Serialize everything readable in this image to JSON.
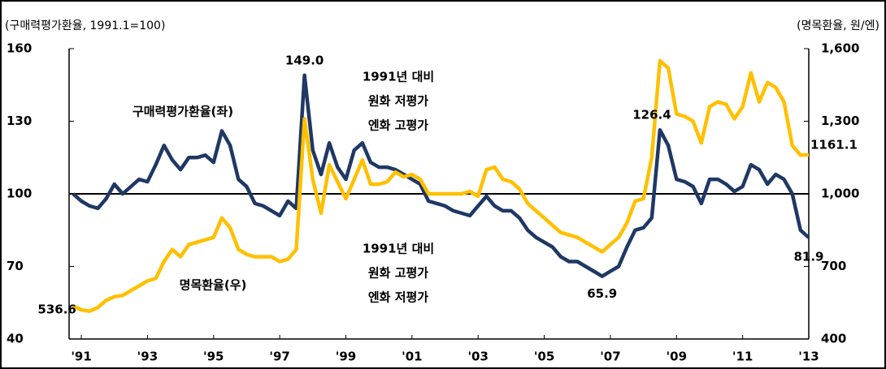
{
  "chart_data": {
    "type": "line",
    "left_axis_label": "(구매력평가환율, 1991.1=100)",
    "right_axis_label": "(명목환율, 원/엔)",
    "annotations": [
      [
        "1991년 대비",
        "원화 저평가",
        "엔화 고평가"
      ],
      [
        "1991년 대비",
        "원화 고평가",
        "엔화 저평가"
      ]
    ],
    "x": [
      1990.75,
      1991,
      1991.25,
      1991.5,
      1991.75,
      1992,
      1992.25,
      1992.5,
      1992.75,
      1993,
      1993.25,
      1993.5,
      1993.75,
      1994,
      1994.25,
      1994.5,
      1994.75,
      1995,
      1995.25,
      1995.5,
      1995.75,
      1996,
      1996.25,
      1996.5,
      1996.75,
      1997,
      1997.25,
      1997.5,
      1997.75,
      1998,
      1998.25,
      1998.5,
      1998.75,
      1999,
      1999.25,
      1999.5,
      1999.75,
      2000,
      2000.25,
      2000.5,
      2000.75,
      2001,
      2001.25,
      2001.5,
      2001.75,
      2002,
      2002.25,
      2002.5,
      2002.75,
      2003,
      2003.25,
      2003.5,
      2003.75,
      2004,
      2004.25,
      2004.5,
      2004.75,
      2005,
      2005.25,
      2005.5,
      2005.75,
      2006,
      2006.25,
      2006.5,
      2006.75,
      2007,
      2007.25,
      2007.5,
      2007.75,
      2008,
      2008.25,
      2008.5,
      2008.75,
      2009,
      2009.25,
      2009.5,
      2009.75,
      2010,
      2010.25,
      2010.5,
      2010.75,
      2011,
      2011.25,
      2011.5,
      2011.75,
      2012,
      2012.25,
      2012.5,
      2012.75,
      2013
    ],
    "series": [
      {
        "name": "구매력평가환율(좌)",
        "color": "#1f3864",
        "axis": "y",
        "values": [
          100,
          97,
          95,
          94,
          98,
          104,
          100,
          103,
          106,
          105,
          112,
          120,
          114,
          110,
          115,
          115,
          116,
          113,
          126,
          120,
          106,
          103,
          96,
          95,
          93,
          91,
          97,
          94,
          149.0,
          118,
          108,
          121,
          111,
          106,
          118,
          121,
          113,
          111,
          111,
          110,
          108,
          106,
          104,
          97,
          96,
          95,
          93,
          92,
          91,
          95,
          99,
          95,
          93,
          93,
          90,
          85,
          82,
          80,
          78,
          74,
          72,
          72,
          70,
          68,
          65.9,
          68,
          70,
          78,
          85,
          86,
          90,
          126.4,
          120,
          106,
          105,
          103,
          96,
          106,
          106,
          104,
          101,
          103,
          112,
          110,
          104,
          108,
          106,
          100,
          85,
          81.9
        ],
        "value_labels": [
          null,
          null,
          null,
          null,
          null,
          null,
          null,
          null,
          null,
          null,
          null,
          null,
          null,
          null,
          null,
          null,
          null,
          null,
          null,
          null,
          null,
          null,
          null,
          null,
          null,
          null,
          null,
          null,
          "149.0",
          null,
          null,
          null,
          null,
          null,
          null,
          null,
          null,
          null,
          null,
          null,
          null,
          null,
          null,
          null,
          null,
          null,
          null,
          null,
          null,
          null,
          null,
          null,
          null,
          null,
          null,
          null,
          null,
          null,
          null,
          null,
          null,
          null,
          null,
          null,
          "65.9",
          null,
          null,
          null,
          null,
          null,
          null,
          "126.4",
          null,
          null,
          null,
          null,
          null,
          null,
          null,
          null,
          null,
          null,
          null,
          null,
          null,
          null,
          null,
          null,
          null,
          "81.9"
        ]
      },
      {
        "name": "명목환율(우)",
        "color": "#ffc000",
        "axis": "y2",
        "values": [
          536.6,
          520,
          515,
          530,
          560,
          575,
          580,
          600,
          620,
          640,
          650,
          720,
          770,
          740,
          790,
          800,
          810,
          820,
          900,
          860,
          770,
          750,
          740,
          740,
          740,
          720,
          730,
          770,
          1310,
          1060,
          920,
          1120,
          1050,
          980,
          1060,
          1140,
          1040,
          1040,
          1050,
          1090,
          1070,
          1080,
          1060,
          1000,
          1000,
          1000,
          1000,
          1000,
          1010,
          990,
          1100,
          1110,
          1060,
          1050,
          1020,
          960,
          930,
          900,
          870,
          840,
          830,
          820,
          800,
          780,
          760,
          790,
          820,
          880,
          970,
          980,
          1150,
          1550,
          1520,
          1330,
          1320,
          1300,
          1210,
          1360,
          1380,
          1370,
          1310,
          1360,
          1500,
          1380,
          1460,
          1440,
          1380,
          1200,
          1160,
          1161.1
        ],
        "value_labels": [
          "536.6",
          null,
          null,
          null,
          null,
          null,
          null,
          null,
          null,
          null,
          null,
          null,
          null,
          null,
          null,
          null,
          null,
          null,
          null,
          null,
          null,
          null,
          null,
          null,
          null,
          null,
          null,
          null,
          null,
          null,
          null,
          null,
          null,
          null,
          null,
          null,
          null,
          null,
          null,
          null,
          null,
          null,
          null,
          null,
          null,
          null,
          null,
          null,
          null,
          null,
          null,
          null,
          null,
          null,
          null,
          null,
          null,
          null,
          null,
          null,
          null,
          null,
          null,
          null,
          null,
          null,
          null,
          null,
          null,
          null,
          null,
          null,
          null,
          null,
          null,
          null,
          null,
          null,
          null,
          null,
          null,
          null,
          null,
          null,
          null,
          null,
          null,
          null,
          null,
          "1161.1"
        ]
      }
    ],
    "xlim": [
      1990.63,
      2013.0
    ],
    "xticks": [
      {
        "value": 1991,
        "label": "'91"
      },
      {
        "value": 1993,
        "label": "'93"
      },
      {
        "value": 1995,
        "label": "'95"
      },
      {
        "value": 1997,
        "label": "'97"
      },
      {
        "value": 1999,
        "label": "'99"
      },
      {
        "value": 2001,
        "label": "'01"
      },
      {
        "value": 2003,
        "label": "'03"
      },
      {
        "value": 2005,
        "label": "'05"
      },
      {
        "value": 2007,
        "label": "'07"
      },
      {
        "value": 2009,
        "label": "'09"
      },
      {
        "value": 2011,
        "label": "'11"
      },
      {
        "value": 2013,
        "label": "'13"
      }
    ],
    "ylim": [
      40,
      160
    ],
    "yticks": [
      40,
      70,
      100,
      130,
      160
    ],
    "y2lim": [
      400,
      1600
    ],
    "y2ticks": [
      {
        "value": 400,
        "label": "400"
      },
      {
        "value": 700,
        "label": "700"
      },
      {
        "value": 1000,
        "label": "1,000"
      },
      {
        "value": 1300,
        "label": "1,300"
      },
      {
        "value": 1600,
        "label": "1,600"
      }
    ],
    "hline": 100
  }
}
